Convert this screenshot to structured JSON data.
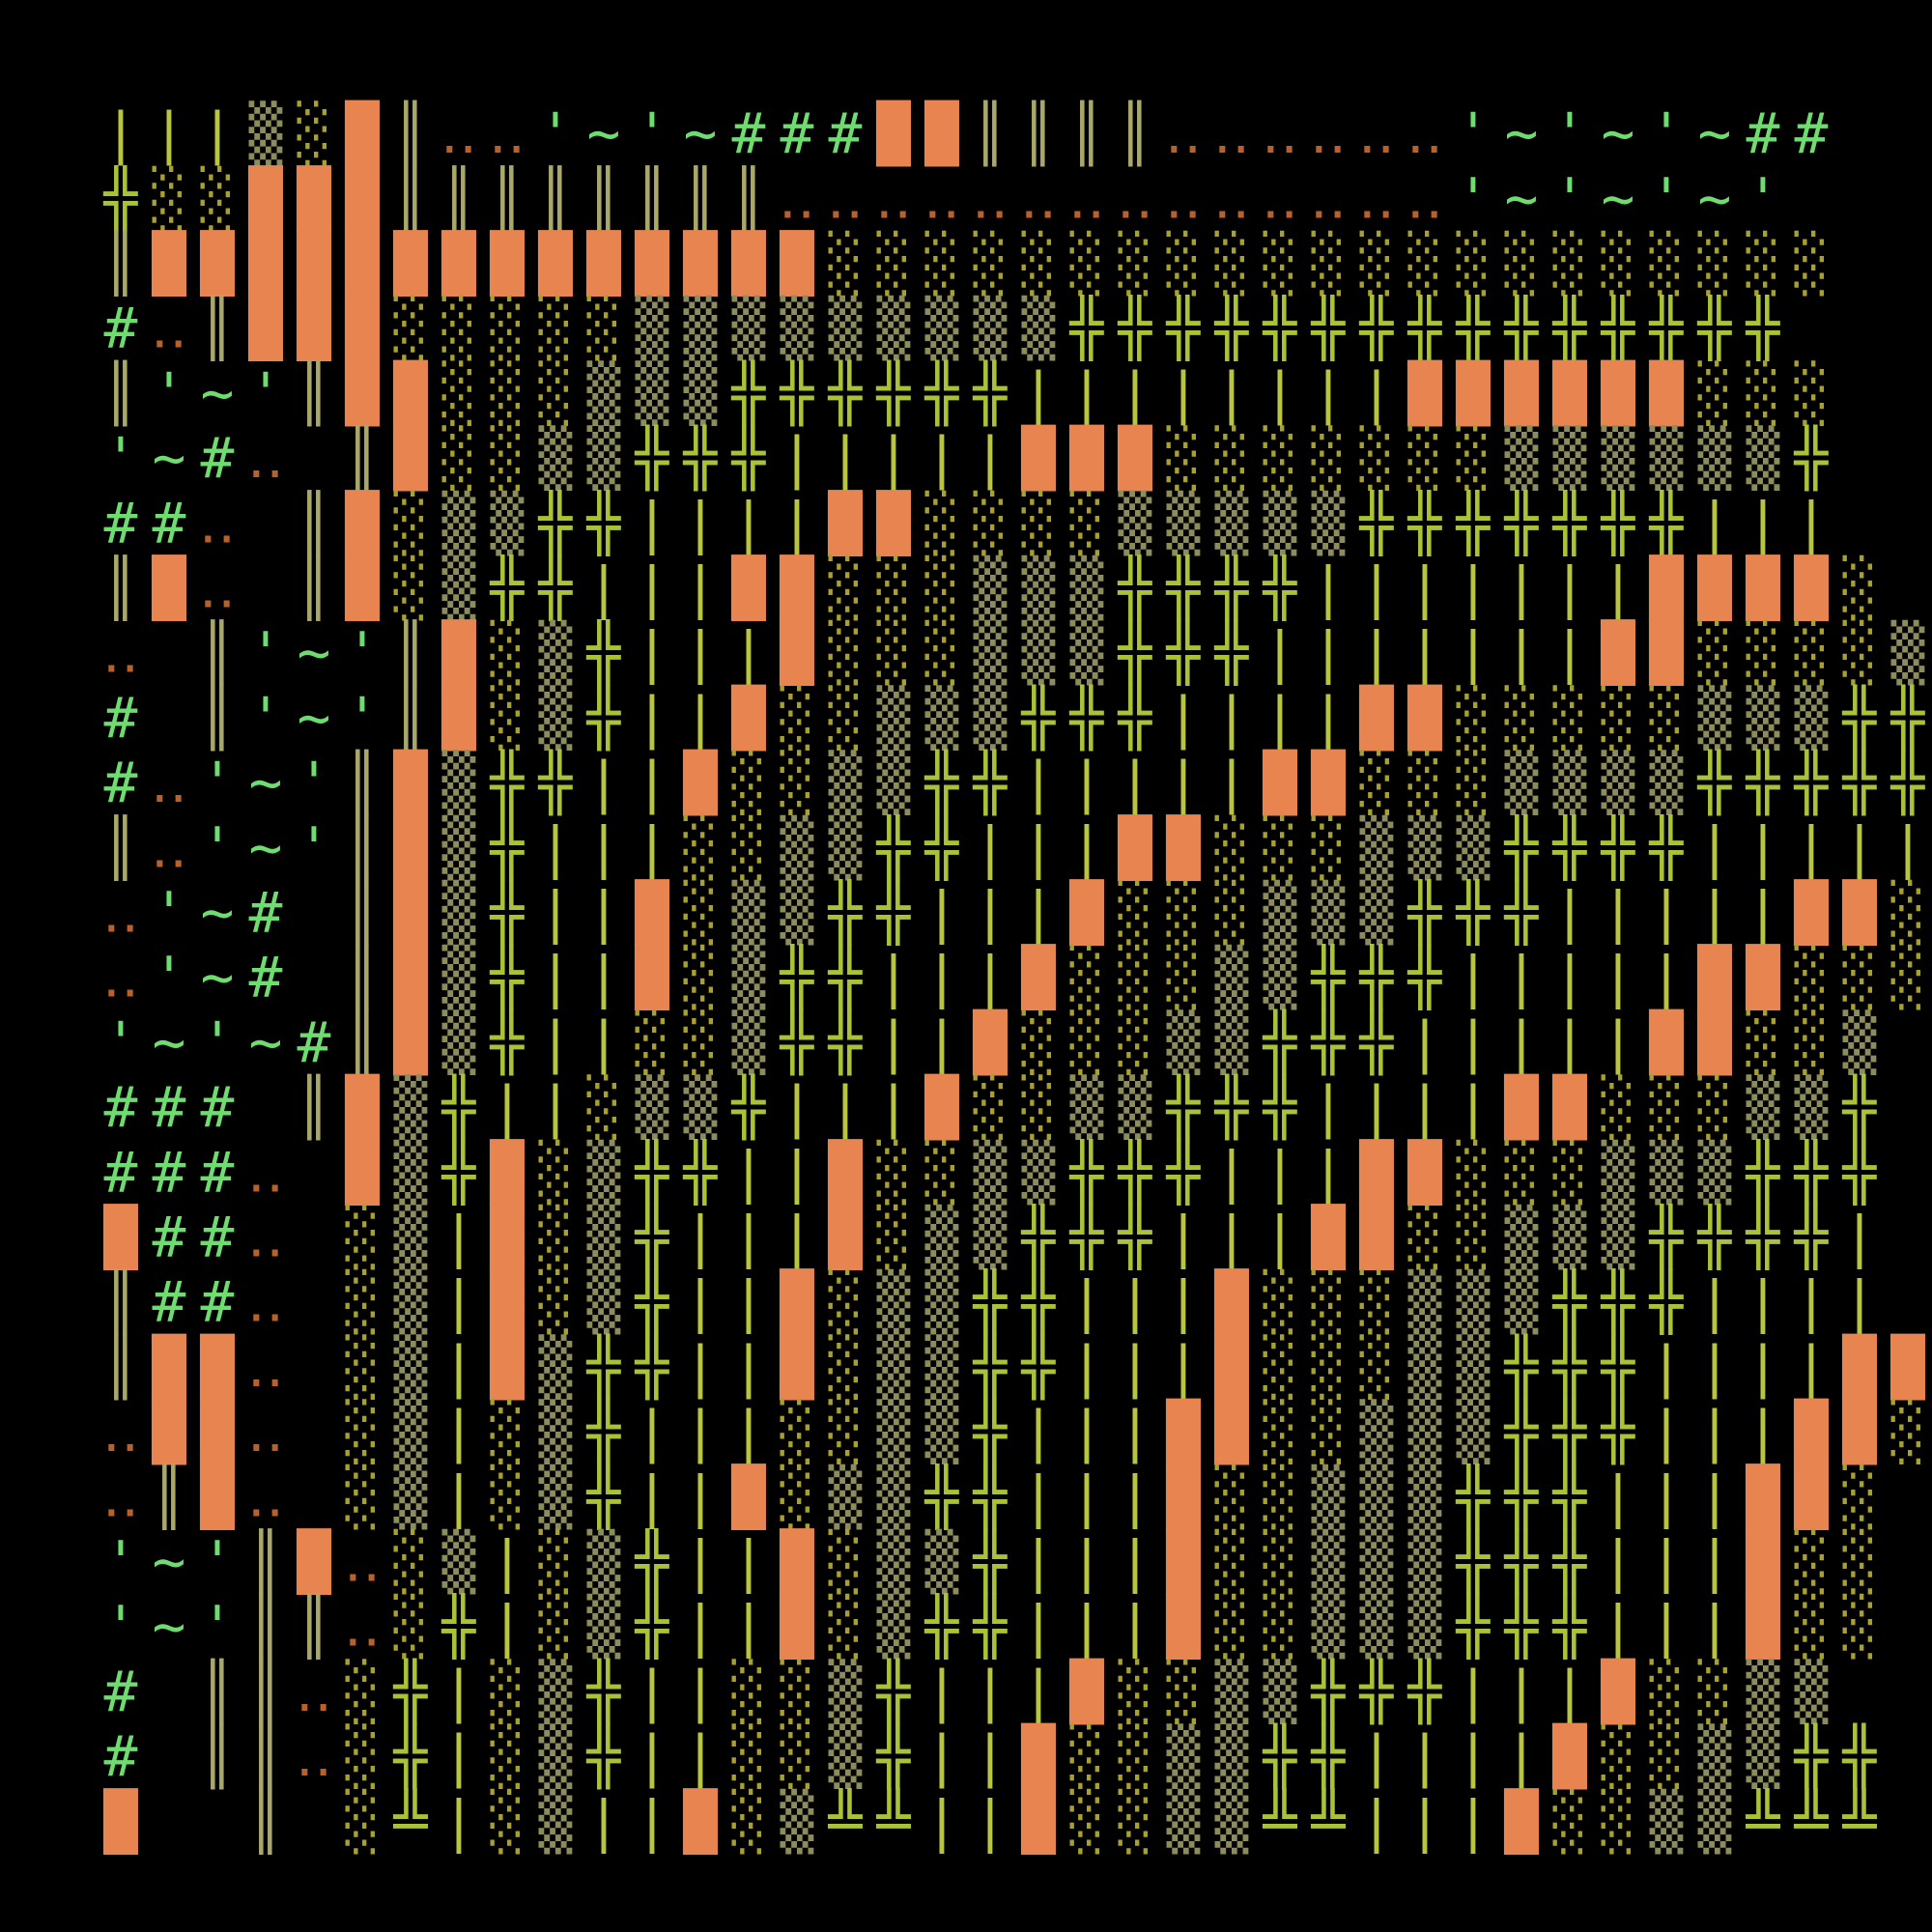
{
  "grid": {
    "rows": [
      "|||▒░█║‥‥'~'~###██║║║║‥‥‥‥‥‥'~'~'~##",
      "╬░░███║║║║║║║║‥‥‥‥‥‥‥‥‥‥‥‥‥‥'~'~'~'",
      "║██████████████░░░░░░░░░░░░░░░░░░░░░",
      "#‥║███░░░░░▒▒▒▒▒▒▒▒▒╬╬╬╬╬╬╬╬╬╬╬╬╬╬╬",
      "║'~'║██░░░▒▒▒╬╬╬╬╬╬||||||||██████░░░",
      "'~#‥ ║█░░▒▒╬╬╬|||||███░░░░░░░▒▒▒▒▒▒╬",
      "##‥ ║█░▒▒╬╬||||██░░░░▒▒▒▒▒╬╬╬╬╬╬╬|||",
      "║█‥ ║█░▒╬╬|||██░░░▒▒▒╬╬╬╬|||||||████░",
      "‥ ║'~'║█░▒╬|||█░░░▒▒▒╬╬╬|||||||██░░░░▒",
      "# ║'~'║█░▒╬||█░░▒▒▒╬╬╬||||██░░░░░▒▒▒╬╬",
      "#‥'~'║█▒╬╬||█░░▒▒╬╬|||||██░░░▒▒▒▒╬╬╬╬╬",
      "║‥'~'║█▒╬|||░░▒▒╬╬|||██░░░▒▒▒╬╬╬╬|||||",
      "‥'~# ║█▒╬||█░▒▒╬╬|||█░░░▒▒▒╬╬╬|||||██░",
      "‥'~# ║█▒╬||█░▒╬╬|||█░░░▒▒╬╬╬|||||██░░░",
      "'~'~#║█▒╬||░░▒╬╬||█░░░▒▒╬╬╬|||||██░░▒",
      "### ║█▒╬||░▒▒╬|||█░░▒▒╬╬╬||||██░░░▒▒╬",
      "###‥ █▒╬█░▒╬╬||█░░▒▒╬╬╬|||██░░░▒▒▒╬╬╬",
      "█##‥ ░▒|█░▒╬|||█░▒▒╬╬╬|||██░░▒▒▒╬╬╬╬|",
      "║##‥ ░▒|█░▒╬||█░▒▒╬╬|||█░░░▒▒▒╬╬╬||||",
      "║██‥ ░▒|█▒╬╬||█░▒▒╬╬|||█░░░▒▒╬╬╬||||██",
      "‥██‥ ░▒|░▒╬|||░░▒▒╬|||██░░▒▒▒╬╬╬|||██░",
      "‥║█‥ ░▒|░▒╬||█░▒▒╬╬|||█░░▒▒▒╬╬╬|||██░",
      "'~'║█‥░▒|░▒╬||█░▒▒╬|||█░░▒▒▒╬╬╬|||█░░",
      "'~'║║‥░╬|░▒╬||█░▒╬╬|||█░░▒▒▒╬╬╬|||█░░",
      "# ║║‥░╬|░▒╬||░░▒╬|||█░░▒▒╬╬╬|||█░░▒▒",
      "# ║║‥░╬|░▒╬||░░▒╬||█░░▒▒╬╬||||█░░▒▒╬╬",
      "█  ║ ░╩|░▒||█░▒╩╩||█░░▒▒╩╩|||█░░▒▒╩╩╩"
    ],
    "colors": {
      "#": "#6fdc6f",
      "'": "#6fdc6f",
      "~": "#6fdc6f",
      "‥": "#b8612a",
      "║": "#a9a86a",
      "█": "#e8844f",
      "░": "#a8a030",
      "▒": "#8d8c5c",
      "╬": "#a9c237",
      "╩": "#a9c237",
      "|": "#b9c53f"
    }
  }
}
